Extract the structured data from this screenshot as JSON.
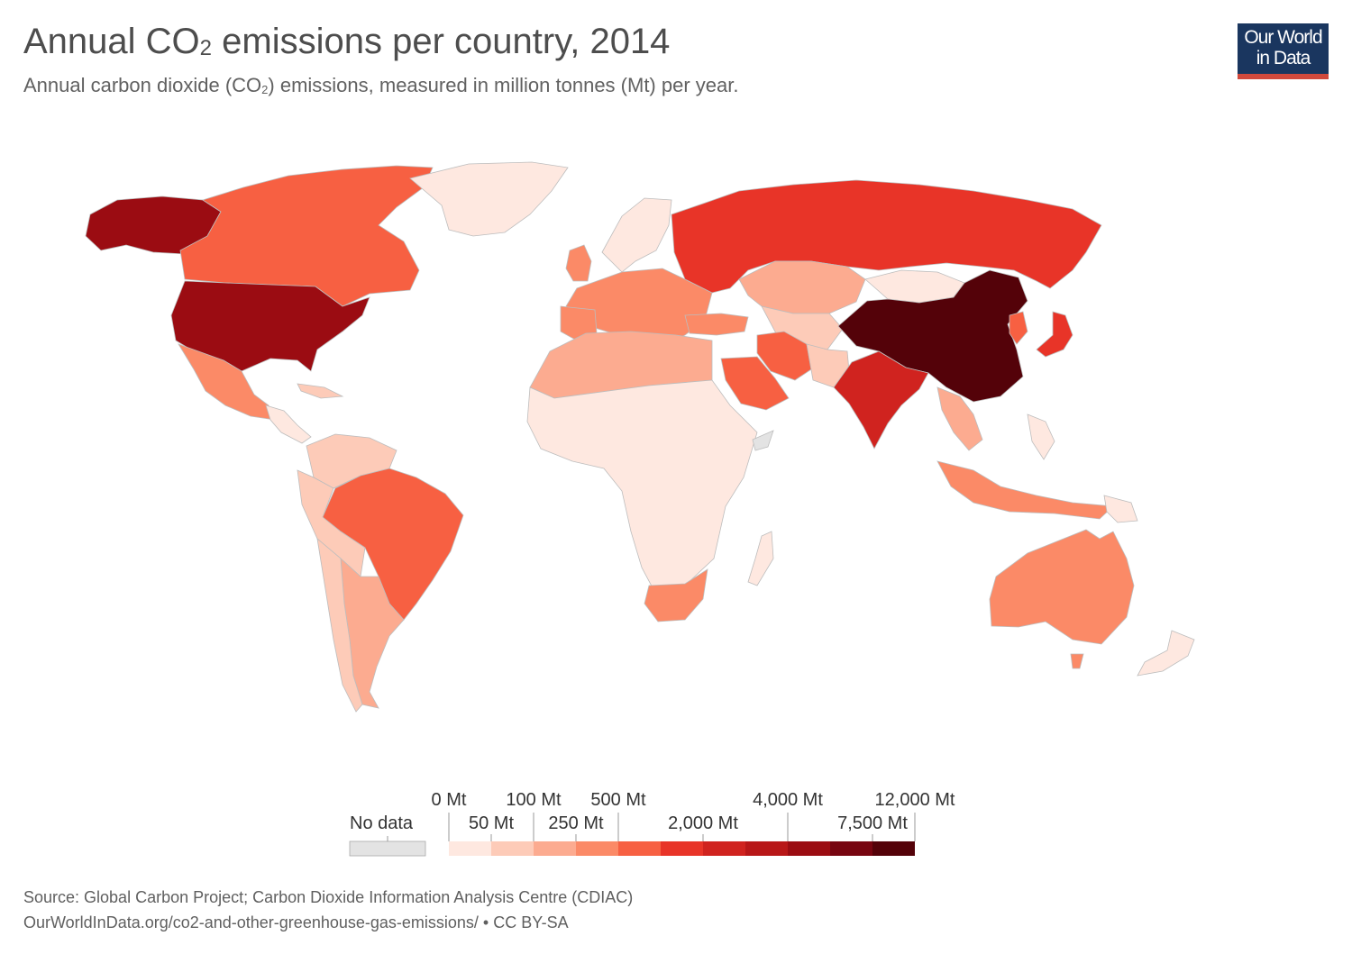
{
  "header": {
    "title_pre": "Annual CO",
    "title_sub": "2",
    "title_post": " emissions per country, 2014",
    "subtitle_pre": "Annual carbon dioxide (CO",
    "subtitle_sub": "2",
    "subtitle_post": ") emissions, measured in million tonnes (Mt) per year."
  },
  "logo": {
    "line1": "Our World",
    "line2": "in Data",
    "bg_color": "#1a365f",
    "accent_color": "#d1493c"
  },
  "legend": {
    "no_data_label": "No data",
    "no_data_color": "#e3e3e3",
    "top_labels": [
      "0 Mt",
      "100 Mt",
      "500 Mt",
      "4,000 Mt",
      "12,000 Mt"
    ],
    "bottom_labels": [
      "50 Mt",
      "250 Mt",
      "2,000 Mt",
      "7,500 Mt"
    ],
    "colors": [
      "#fee8e0",
      "#fdcbb8",
      "#fcab90",
      "#fb8a67",
      "#f76042",
      "#e83428",
      "#d0231f",
      "#b81718",
      "#9b0c12",
      "#770510",
      "#540209"
    ]
  },
  "map": {
    "fills": {
      "usa": "#9b0c12",
      "alaska": "#9b0c12",
      "canada": "#f76042",
      "greenland": "#fee8e0",
      "mexico": "#fb8a67",
      "central_america": "#fee8e0",
      "caribbean": "#fdcbb8",
      "brazil": "#f76042",
      "south_america_other": "#fdcbb8",
      "argentina": "#fcab90",
      "europe": "#fb8a67",
      "scandinavia": "#fee8e0",
      "russia": "#e83428",
      "kazakhstan": "#fcab90",
      "central_asia": "#fdcbb8",
      "mongolia": "#fee8e0",
      "china": "#540209",
      "japan": "#e83428",
      "korea": "#f76042",
      "india": "#d0231f",
      "middle_east": "#fb8a67",
      "iran": "#f76042",
      "saudi_arabia": "#f76042",
      "north_africa": "#fcab90",
      "africa_other": "#fee8e0",
      "south_africa": "#fb8a67",
      "southeast_asia": "#fcab90",
      "indonesia": "#fb8a67",
      "australia": "#fb8a67",
      "new_zealand": "#fee8e0",
      "pacific_islands": "#fee8e0",
      "no_data_patch": "#e3e3e3"
    }
  },
  "footer": {
    "source": "Source: Global Carbon Project; Carbon Dioxide Information Analysis Centre (CDIAC)",
    "url": "OurWorldInData.org/co2-and-other-greenhouse-gas-emissions/ • CC BY-SA"
  }
}
